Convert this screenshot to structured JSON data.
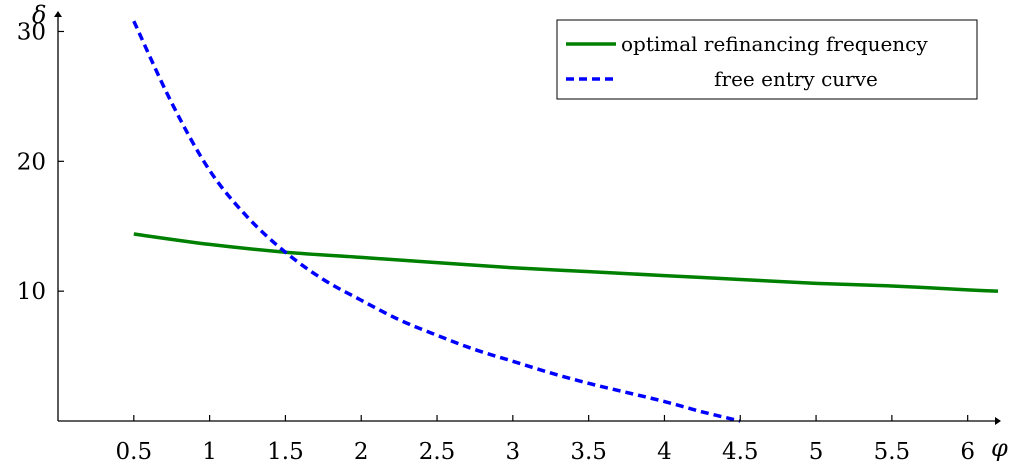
{
  "chart_data": {
    "type": "line",
    "xlabel": "φ",
    "ylabel": "δ",
    "xlim": [
      0,
      6.2
    ],
    "ylim": [
      0,
      31.5
    ],
    "x_ticks": [
      0.5,
      1,
      1.5,
      2,
      2.5,
      3,
      3.5,
      4,
      4.5,
      5,
      5.5,
      6
    ],
    "x_tick_labels": [
      "0.5",
      "1",
      "1.5",
      "2",
      "2.5",
      "3",
      "3.5",
      "4",
      "4.5",
      "5",
      "5.5",
      "6"
    ],
    "y_ticks": [
      10,
      20,
      30
    ],
    "y_tick_labels": [
      "10",
      "20",
      "30"
    ],
    "grid": false,
    "legend_position": "top-right",
    "series": [
      {
        "name": "optimal refinancing frequency",
        "color": "#008000",
        "style": "solid",
        "x": [
          0.5,
          1,
          1.5,
          2,
          2.5,
          3,
          3.5,
          4,
          4.5,
          5,
          5.5,
          6,
          6.2
        ],
        "y": [
          14.4,
          13.6,
          13.0,
          12.6,
          12.2,
          11.8,
          11.5,
          11.2,
          10.9,
          10.6,
          10.4,
          10.1,
          10.0
        ]
      },
      {
        "name": "free entry curve",
        "color": "#0000ff",
        "style": "dashed",
        "x": [
          0.5,
          0.75,
          1,
          1.25,
          1.5,
          1.75,
          2,
          2.25,
          2.5,
          2.75,
          3,
          3.25,
          3.5,
          3.75,
          4,
          4.25,
          4.5
        ],
        "y": [
          30.8,
          24.5,
          19.3,
          15.7,
          13.0,
          10.9,
          9.3,
          7.8,
          6.6,
          5.5,
          4.6,
          3.7,
          2.9,
          2.2,
          1.5,
          0.7,
          0.0
        ]
      }
    ]
  }
}
